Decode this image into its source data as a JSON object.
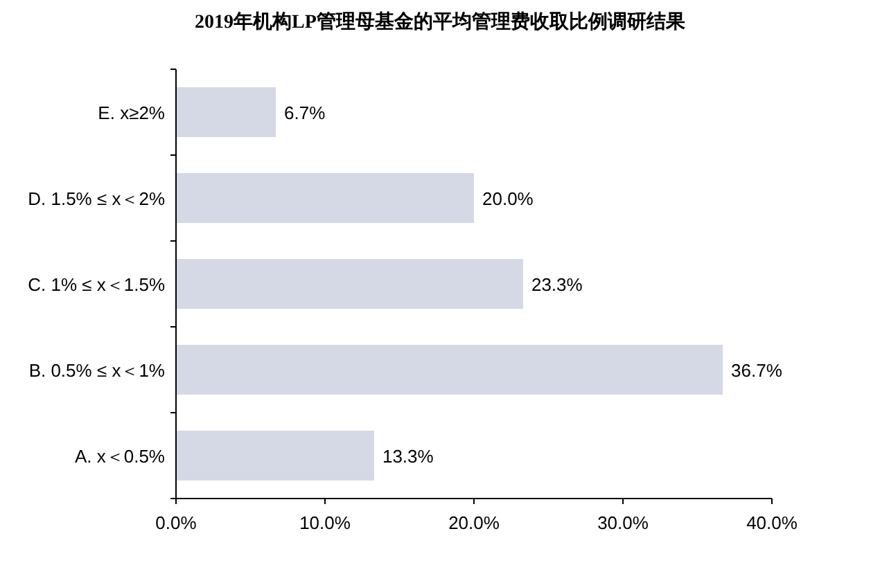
{
  "chart_data": {
    "type": "bar",
    "orientation": "horizontal",
    "title": "2019年机构LP管理母基金的平均管理费收取比例调研结果",
    "categories": [
      "E. x≥2%",
      "D. 1.5% ≤ x＜2%",
      "C. 1% ≤ x＜1.5%",
      "B. 0.5% ≤ x＜1%",
      "A. x＜0.5%"
    ],
    "values": [
      6.7,
      20.0,
      23.3,
      36.7,
      13.3
    ],
    "value_labels": [
      "6.7%",
      "20.0%",
      "23.3%",
      "36.7%",
      "13.3%"
    ],
    "color": "#d5d9e6",
    "xlim": [
      0,
      40
    ],
    "xticks": [
      {
        "value": 0,
        "label": "0.0%"
      },
      {
        "value": 10,
        "label": "10.0%"
      },
      {
        "value": 20,
        "label": "20.0%"
      },
      {
        "value": 30,
        "label": "30.0%"
      },
      {
        "value": 40,
        "label": "40.0%"
      }
    ],
    "grid": false
  }
}
